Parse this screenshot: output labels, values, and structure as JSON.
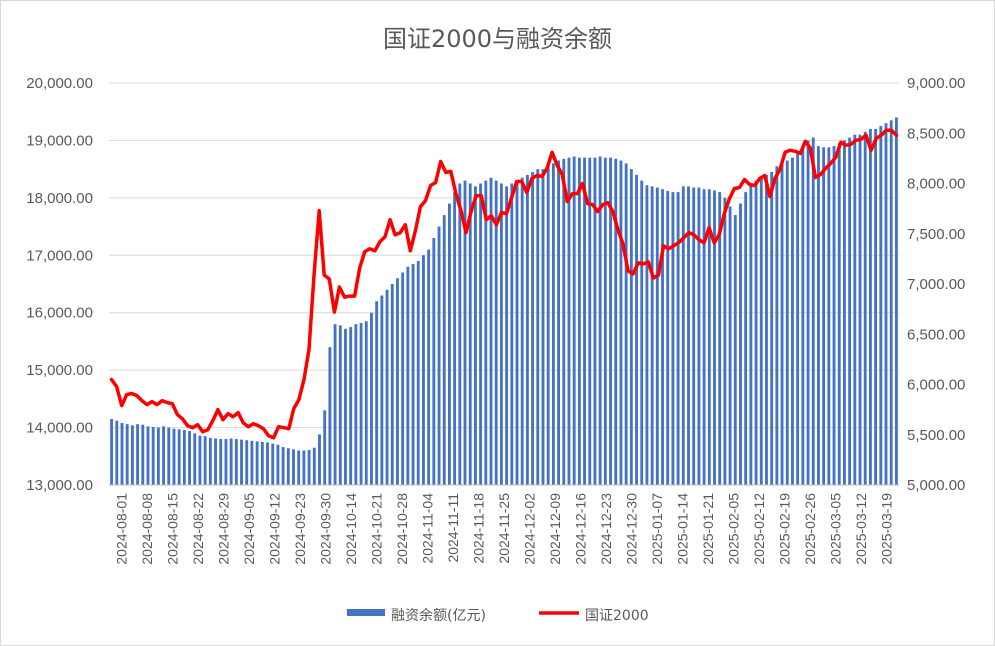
{
  "chart_data": {
    "type": "bar+line",
    "title": "国证2000与融资余额",
    "left_axis": {
      "min": 13000,
      "max": 20000,
      "step": 1000,
      "tick_labels": [
        "13,000.00",
        "14,000.00",
        "15,000.00",
        "16,000.00",
        "17,000.00",
        "18,000.00",
        "19,000.00",
        "20,000.00"
      ]
    },
    "right_axis": {
      "min": 5000,
      "max": 9000,
      "step": 500,
      "tick_labels": [
        "5,000.00",
        "5,500.00",
        "6,000.00",
        "6,500.00",
        "7,000.00",
        "7,500.00",
        "8,000.00",
        "8,500.00",
        "9,000.00"
      ]
    },
    "x_tick_labels": [
      "2024-08-01",
      "2024-08-08",
      "2024-08-15",
      "2024-08-22",
      "2024-08-29",
      "2024-09-05",
      "2024-09-12",
      "2024-09-23",
      "2024-09-30",
      "2024-10-14",
      "2024-10-21",
      "2024-10-28",
      "2024-11-04",
      "2024-11-11",
      "2024-11-18",
      "2024-11-25",
      "2024-12-02",
      "2024-12-09",
      "2024-12-16",
      "2024-12-23",
      "2024-12-30",
      "2025-01-07",
      "2025-01-14",
      "2025-01-21",
      "2025-02-05",
      "2025-02-12",
      "2025-02-19",
      "2025-02-26",
      "2025-03-05",
      "2025-03-12",
      "2025-03-19"
    ],
    "legend_position": "bottom",
    "series": [
      {
        "name": "融资余额(亿元)",
        "type": "bar",
        "axis": "left",
        "color": "#4472c4",
        "values": [
          14150,
          14120,
          14080,
          14060,
          14040,
          14060,
          14050,
          14020,
          14010,
          14000,
          14020,
          14000,
          13980,
          13970,
          13960,
          13940,
          13900,
          13860,
          13850,
          13820,
          13810,
          13800,
          13800,
          13810,
          13800,
          13790,
          13780,
          13770,
          13760,
          13750,
          13740,
          13720,
          13700,
          13660,
          13640,
          13620,
          13600,
          13600,
          13610,
          13650,
          13880,
          14300,
          15400,
          15800,
          15780,
          15720,
          15750,
          15800,
          15820,
          15850,
          16000,
          16200,
          16300,
          16400,
          16500,
          16600,
          16700,
          16800,
          16850,
          16900,
          17000,
          17100,
          17300,
          17500,
          17700,
          17900,
          18100,
          18250,
          18300,
          18250,
          18200,
          18250,
          18300,
          18350,
          18300,
          18250,
          18200,
          18250,
          18300,
          18350,
          18400,
          18450,
          18500,
          18500,
          18550,
          18600,
          18650,
          18680,
          18700,
          18720,
          18700,
          18700,
          18700,
          18700,
          18720,
          18700,
          18700,
          18680,
          18650,
          18600,
          18500,
          18400,
          18300,
          18220,
          18200,
          18180,
          18150,
          18120,
          18100,
          18100,
          18200,
          18200,
          18180,
          18180,
          18150,
          18150,
          18130,
          18100,
          18000,
          17850,
          17700,
          17900,
          18100,
          18250,
          18300,
          18350,
          18400,
          18450,
          18550,
          18600,
          18650,
          18700,
          18800,
          18900,
          19000,
          19050,
          18900,
          18880,
          18880,
          18900,
          18950,
          19000,
          19050,
          19100,
          19100,
          19150,
          19200,
          19200,
          19250,
          19300,
          19350,
          19400
        ]
      },
      {
        "name": "国证2000",
        "type": "line",
        "axis": "right",
        "color": "#ff0000",
        "values": [
          6050,
          5980,
          5790,
          5900,
          5910,
          5890,
          5840,
          5800,
          5830,
          5800,
          5840,
          5820,
          5810,
          5700,
          5660,
          5590,
          5570,
          5600,
          5530,
          5550,
          5640,
          5750,
          5650,
          5710,
          5680,
          5720,
          5620,
          5580,
          5610,
          5590,
          5560,
          5490,
          5470,
          5580,
          5570,
          5560,
          5760,
          5850,
          6050,
          6350,
          7100,
          7730,
          7090,
          7050,
          6720,
          6970,
          6870,
          6880,
          6880,
          7160,
          7320,
          7350,
          7330,
          7420,
          7470,
          7640,
          7490,
          7510,
          7590,
          7330,
          7530,
          7770,
          7830,
          7980,
          8010,
          8220,
          8110,
          8120,
          7900,
          7730,
          7510,
          7720,
          7880,
          7880,
          7640,
          7680,
          7590,
          7710,
          7700,
          7860,
          8020,
          8020,
          7910,
          8050,
          8080,
          8070,
          8150,
          8310,
          8180,
          8090,
          7820,
          7900,
          7900,
          8000,
          7800,
          7790,
          7720,
          7790,
          7810,
          7720,
          7540,
          7400,
          7130,
          7100,
          7210,
          7200,
          7220,
          7060,
          7090,
          7380,
          7350,
          7380,
          7410,
          7460,
          7510,
          7490,
          7440,
          7410,
          7560,
          7410,
          7490,
          7700,
          7850,
          7950,
          7960,
          8040,
          7990,
          7980,
          8050,
          8080,
          7870,
          8050,
          8140,
          8310,
          8330,
          8320,
          8300,
          8420,
          8350,
          8060,
          8090,
          8150,
          8200,
          8260,
          8410,
          8380,
          8390,
          8430,
          8440,
          8480,
          8330,
          8450,
          8480,
          8530,
          8530,
          8480
        ]
      }
    ]
  }
}
